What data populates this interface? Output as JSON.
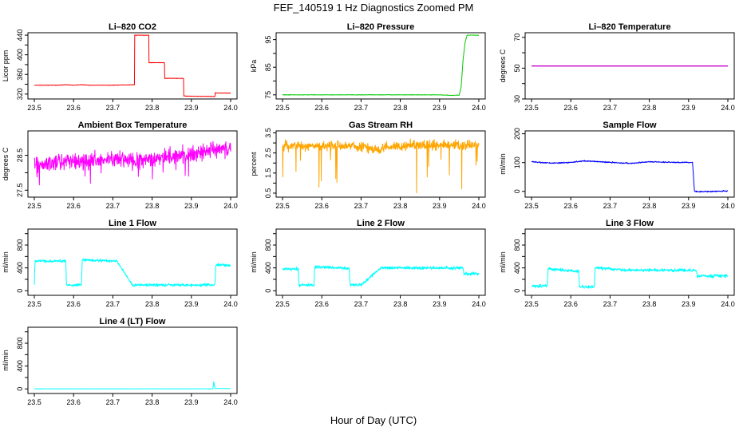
{
  "page_title": "FEF_140519  1 Hz Diagnostics Zoomed PM",
  "x_axis_label": "Hour of Day (UTC)",
  "chart_data": [
    {
      "type": "line",
      "title": "Li–820 CO2",
      "ylabel": "Licor ppm",
      "color": "#ff0000",
      "xlim": [
        23.5,
        24.0
      ],
      "x_ticks": [
        23.5,
        23.6,
        23.7,
        23.8,
        23.9,
        24.0
      ],
      "ylim": [
        310,
        445
      ],
      "y_ticks": [
        320,
        340,
        360,
        380,
        400,
        420,
        440
      ],
      "y_tick_labels": [
        "320",
        "",
        "360",
        "",
        "400",
        "",
        "440"
      ],
      "noise": 0.6,
      "series": [
        {
          "points": [
            [
              23.5,
              338
            ],
            [
              23.56,
              338
            ],
            [
              23.58,
              339
            ],
            [
              23.6,
              338
            ],
            [
              23.62,
              339
            ],
            [
              23.64,
              338
            ],
            [
              23.7,
              338
            ],
            [
              23.755,
              339
            ],
            [
              23.755,
              440
            ],
            [
              23.792,
              440
            ],
            [
              23.792,
              384
            ],
            [
              23.832,
              384
            ],
            [
              23.832,
              352
            ],
            [
              23.88,
              352
            ],
            [
              23.88,
              316
            ],
            [
              23.96,
              315
            ],
            [
              23.96,
              325
            ],
            [
              23.961,
              322
            ],
            [
              24.0,
              322
            ]
          ]
        }
      ]
    },
    {
      "type": "line",
      "title": "Li–820 Pressure",
      "ylabel": "kPa",
      "color": "#00c800",
      "xlim": [
        23.5,
        24.0
      ],
      "x_ticks": [
        23.5,
        23.6,
        23.7,
        23.8,
        23.9,
        24.0
      ],
      "ylim": [
        73.5,
        97.5
      ],
      "y_ticks": [
        75,
        80,
        85,
        90,
        95
      ],
      "y_tick_labels": [
        "75",
        "",
        "85",
        "",
        "95"
      ],
      "noise": 0.12,
      "series": [
        {
          "points": [
            [
              23.5,
              75.0
            ],
            [
              23.6,
              75.0
            ],
            [
              23.7,
              75.0
            ],
            [
              23.8,
              75.0
            ],
            [
              23.9,
              75.0
            ],
            [
              23.93,
              74.8
            ],
            [
              23.95,
              74.9
            ],
            [
              23.955,
              78
            ],
            [
              23.96,
              88
            ],
            [
              23.965,
              94
            ],
            [
              23.97,
              96.6
            ],
            [
              24.0,
              96.6
            ]
          ]
        }
      ]
    },
    {
      "type": "line",
      "title": "Li–820 Temperature",
      "ylabel": "degrees C",
      "color": "#c800c8",
      "xlim": [
        23.5,
        24.0
      ],
      "x_ticks": [
        23.5,
        23.6,
        23.7,
        23.8,
        23.9,
        24.0
      ],
      "ylim": [
        30,
        73
      ],
      "y_ticks": [
        30,
        40,
        50,
        60,
        70
      ],
      "y_tick_labels": [
        "30",
        "",
        "50",
        "",
        "70"
      ],
      "noise": 0,
      "series": [
        {
          "points": [
            [
              23.5,
              51.4
            ],
            [
              24.0,
              51.4
            ]
          ]
        }
      ]
    },
    {
      "type": "line",
      "title": "Ambient Box Temperature",
      "ylabel": "degrees C",
      "color": "#ff00ff",
      "xlim": [
        23.5,
        24.0
      ],
      "x_ticks": [
        23.5,
        23.6,
        23.7,
        23.8,
        23.9,
        24.0
      ],
      "ylim": [
        27.3,
        29.2
      ],
      "y_ticks": [
        27.5,
        28.0,
        28.5
      ],
      "y_tick_labels": [
        "27.5",
        "",
        "28.5"
      ],
      "noise": 0.32,
      "series": [
        {
          "points": [
            [
              23.5,
              28.25
            ],
            [
              23.6,
              28.3
            ],
            [
              23.7,
              28.4
            ],
            [
              23.71,
              28.45
            ],
            [
              23.75,
              28.35
            ],
            [
              23.755,
              28.3
            ],
            [
              23.8,
              28.4
            ],
            [
              23.9,
              28.55
            ],
            [
              24.0,
              28.7
            ]
          ]
        }
      ]
    },
    {
      "type": "line",
      "title": "Gas Stream RH",
      "ylabel": "percent",
      "color": "#ffa500",
      "xlim": [
        23.5,
        24.0
      ],
      "x_ticks": [
        23.5,
        23.6,
        23.7,
        23.8,
        23.9,
        24.0
      ],
      "ylim": [
        0.3,
        3.6
      ],
      "y_ticks": [
        0.5,
        1.0,
        1.5,
        2.0,
        2.5,
        3.0,
        3.5
      ],
      "y_tick_labels": [
        "0.5",
        "",
        "1.5",
        "",
        "2.5",
        "",
        "3.5"
      ],
      "noise": 0.35,
      "series": [
        {
          "points": [
            [
              23.5,
              2.85
            ],
            [
              23.6,
              2.85
            ],
            [
              23.7,
              2.85
            ],
            [
              23.71,
              2.8
            ],
            [
              23.75,
              2.6
            ],
            [
              23.755,
              2.8
            ],
            [
              23.8,
              2.85
            ],
            [
              23.9,
              2.9
            ],
            [
              24.0,
              2.9
            ]
          ]
        }
      ]
    },
    {
      "type": "line",
      "title": "Sample Flow",
      "ylabel": "ml/min",
      "color": "#0000ff",
      "xlim": [
        23.5,
        24.0
      ],
      "x_ticks": [
        23.5,
        23.6,
        23.7,
        23.8,
        23.9,
        24.0
      ],
      "ylim": [
        -20,
        210
      ],
      "y_ticks": [
        0,
        100,
        200
      ],
      "y_tick_labels": [
        "0",
        "100",
        "200"
      ],
      "noise": 3,
      "series": [
        {
          "points": [
            [
              23.5,
              103
            ],
            [
              23.55,
              98
            ],
            [
              23.6,
              100
            ],
            [
              23.63,
              106
            ],
            [
              23.7,
              101
            ],
            [
              23.75,
              97
            ],
            [
              23.8,
              103
            ],
            [
              23.85,
              101
            ],
            [
              23.91,
              100
            ],
            [
              23.915,
              0
            ],
            [
              23.93,
              -1
            ],
            [
              24.0,
              1
            ]
          ]
        }
      ]
    },
    {
      "type": "line",
      "title": "Line 1 Flow",
      "ylabel": "ml/min",
      "color": "#00ffff",
      "xlim": [
        23.5,
        24.0
      ],
      "x_ticks": [
        23.5,
        23.6,
        23.7,
        23.8,
        23.9,
        24.0
      ],
      "ylim": [
        -80,
        1080
      ],
      "y_ticks": [
        0,
        200,
        400,
        600,
        800,
        1000
      ],
      "y_tick_labels": [
        "0",
        "",
        "400",
        "",
        "800",
        ""
      ],
      "noise": 35,
      "series": [
        {
          "points": [
            [
              23.5,
              120
            ],
            [
              23.502,
              520
            ],
            [
              23.58,
              520
            ],
            [
              23.582,
              100
            ],
            [
              23.62,
              100
            ],
            [
              23.622,
              540
            ],
            [
              23.71,
              520
            ],
            [
              23.75,
              100
            ],
            [
              23.96,
              100
            ],
            [
              23.962,
              450
            ],
            [
              24.0,
              450
            ]
          ]
        }
      ]
    },
    {
      "type": "line",
      "title": "Line 2 Flow",
      "ylabel": "ml/min",
      "color": "#00ffff",
      "xlim": [
        23.5,
        24.0
      ],
      "x_ticks": [
        23.5,
        23.6,
        23.7,
        23.8,
        23.9,
        24.0
      ],
      "ylim": [
        -80,
        1080
      ],
      "y_ticks": [
        0,
        200,
        400,
        600,
        800,
        1000
      ],
      "y_tick_labels": [
        "0",
        "",
        "400",
        "",
        "800",
        ""
      ],
      "noise": 40,
      "series": [
        {
          "points": [
            [
              23.5,
              380
            ],
            [
              23.54,
              380
            ],
            [
              23.542,
              100
            ],
            [
              23.58,
              100
            ],
            [
              23.582,
              420
            ],
            [
              23.67,
              390
            ],
            [
              23.672,
              100
            ],
            [
              23.7,
              100
            ],
            [
              23.75,
              400
            ],
            [
              23.96,
              400
            ],
            [
              23.962,
              300
            ],
            [
              24.0,
              300
            ]
          ]
        }
      ]
    },
    {
      "type": "line",
      "title": "Line 3 Flow",
      "ylabel": "ml/min",
      "color": "#00ffff",
      "xlim": [
        23.5,
        24.0
      ],
      "x_ticks": [
        23.5,
        23.6,
        23.7,
        23.8,
        23.9,
        24.0
      ],
      "ylim": [
        -80,
        1080
      ],
      "y_ticks": [
        0,
        200,
        400,
        600,
        800,
        1000
      ],
      "y_tick_labels": [
        "0",
        "",
        "400",
        "",
        "800",
        ""
      ],
      "noise": 40,
      "series": [
        {
          "points": [
            [
              23.5,
              80
            ],
            [
              23.54,
              80
            ],
            [
              23.542,
              380
            ],
            [
              23.62,
              340
            ],
            [
              23.622,
              70
            ],
            [
              23.66,
              70
            ],
            [
              23.662,
              400
            ],
            [
              23.75,
              360
            ],
            [
              23.92,
              360
            ],
            [
              23.922,
              260
            ],
            [
              24.0,
              260
            ]
          ]
        }
      ]
    },
    {
      "type": "line",
      "title": "Line 4 (LT) Flow",
      "ylabel": "ml/min",
      "color": "#00ffff",
      "xlim": [
        23.5,
        24.0
      ],
      "x_ticks": [
        23.5,
        23.6,
        23.7,
        23.8,
        23.9,
        24.0
      ],
      "ylim": [
        -80,
        1080
      ],
      "y_ticks": [
        0,
        200,
        400,
        600,
        800,
        1000
      ],
      "y_tick_labels": [
        "0",
        "",
        "400",
        "",
        "800",
        ""
      ],
      "noise": 3,
      "series": [
        {
          "points": [
            [
              23.5,
              2
            ],
            [
              23.955,
              2
            ],
            [
              23.957,
              130
            ],
            [
              23.96,
              10
            ],
            [
              24.0,
              5
            ]
          ]
        }
      ]
    }
  ]
}
